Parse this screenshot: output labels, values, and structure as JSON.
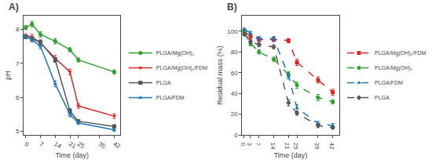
{
  "chart_data": [
    {
      "type": "line",
      "title": "A)",
      "xlabel": "Time (day)",
      "ylabel": "pH",
      "x": [
        0,
        3,
        7,
        14,
        21,
        25,
        42
      ],
      "xlim": [
        -1,
        45
      ],
      "xticks": [
        0,
        7,
        14,
        21,
        25,
        35,
        42
      ],
      "ylim": [
        4.9,
        8.4
      ],
      "yticks": [
        5,
        6,
        7,
        8
      ],
      "grid": false,
      "legend": "right",
      "series": [
        {
          "name": "PLGA/Mg(OH)₂",
          "color": "#2ca02c",
          "marker": "circle",
          "line_style": "solid",
          "values": [
            8.05,
            8.15,
            7.85,
            7.65,
            7.4,
            7.1,
            6.75
          ],
          "errors": [
            0.06,
            0.08,
            0.08,
            0.08,
            0.06,
            0.06,
            0.06
          ]
        },
        {
          "name": "PLGA/Mg(OH)₂/FDM",
          "color": "#d62728",
          "marker": "triangle-down",
          "line_style": "solid",
          "values": [
            7.82,
            7.78,
            7.6,
            7.15,
            6.75,
            5.75,
            5.45
          ],
          "errors": [
            0.05,
            0.07,
            0.08,
            0.08,
            0.08,
            0.07,
            0.07
          ]
        },
        {
          "name": "PLGA",
          "color": "#555555",
          "marker": "square",
          "line_style": "solid",
          "values": [
            7.78,
            7.72,
            7.62,
            7.1,
            5.6,
            5.3,
            5.15
          ],
          "errors": [
            0.05,
            0.06,
            0.07,
            0.07,
            0.07,
            0.05,
            0.05
          ]
        },
        {
          "name": "PLGA/FDM",
          "color": "#1f77b4",
          "marker": "triangle-up",
          "line_style": "solid",
          "values": [
            7.78,
            7.7,
            7.5,
            6.4,
            5.5,
            5.25,
            5.05
          ],
          "errors": [
            0.05,
            0.07,
            0.07,
            0.09,
            0.07,
            0.05,
            0.05
          ]
        }
      ]
    },
    {
      "type": "line",
      "title": "B)",
      "xlabel": "Time (day)",
      "ylabel": "Residual mass (%)",
      "x": [
        0,
        3,
        7,
        14,
        21,
        25,
        35,
        42
      ],
      "xlim": [
        -1,
        45
      ],
      "xticks": [
        0,
        3,
        7,
        14,
        21,
        25,
        35,
        42
      ],
      "ylim": [
        0,
        115
      ],
      "yticks": [
        0,
        20,
        40,
        60,
        80,
        100
      ],
      "grid": false,
      "legend": "right",
      "series": [
        {
          "name": "PLGA/Mg(OH)₂/FDM",
          "color": "#d62728",
          "marker": "square",
          "line_style": "dashed",
          "values": [
            100,
            95,
            92,
            92,
            91,
            70,
            53,
            41
          ],
          "errors": [
            1,
            2,
            2,
            2,
            2,
            3,
            3,
            3
          ]
        },
        {
          "name": "PLGA/Mg(OH)₂",
          "color": "#2ca02c",
          "marker": "circle",
          "line_style": "dashed",
          "values": [
            100,
            88,
            80,
            73,
            58,
            48,
            36,
            32
          ],
          "errors": [
            1,
            2,
            2,
            2,
            3,
            3,
            3,
            2
          ]
        },
        {
          "name": "PLGA/FDM",
          "color": "#1f77b4",
          "marker": "triangle-up",
          "line_style": "dashed",
          "values": [
            102,
            98,
            93,
            93,
            57,
            26,
            11,
            9
          ],
          "errors": [
            1,
            2,
            2,
            2,
            3,
            3,
            2,
            2
          ]
        },
        {
          "name": "PLGA",
          "color": "#555555",
          "marker": "diamond",
          "line_style": "dashed",
          "values": [
            97,
            90,
            87,
            85,
            31,
            21,
            9,
            7
          ],
          "errors": [
            1,
            2,
            2,
            2,
            3,
            2,
            2,
            1
          ]
        }
      ]
    }
  ]
}
